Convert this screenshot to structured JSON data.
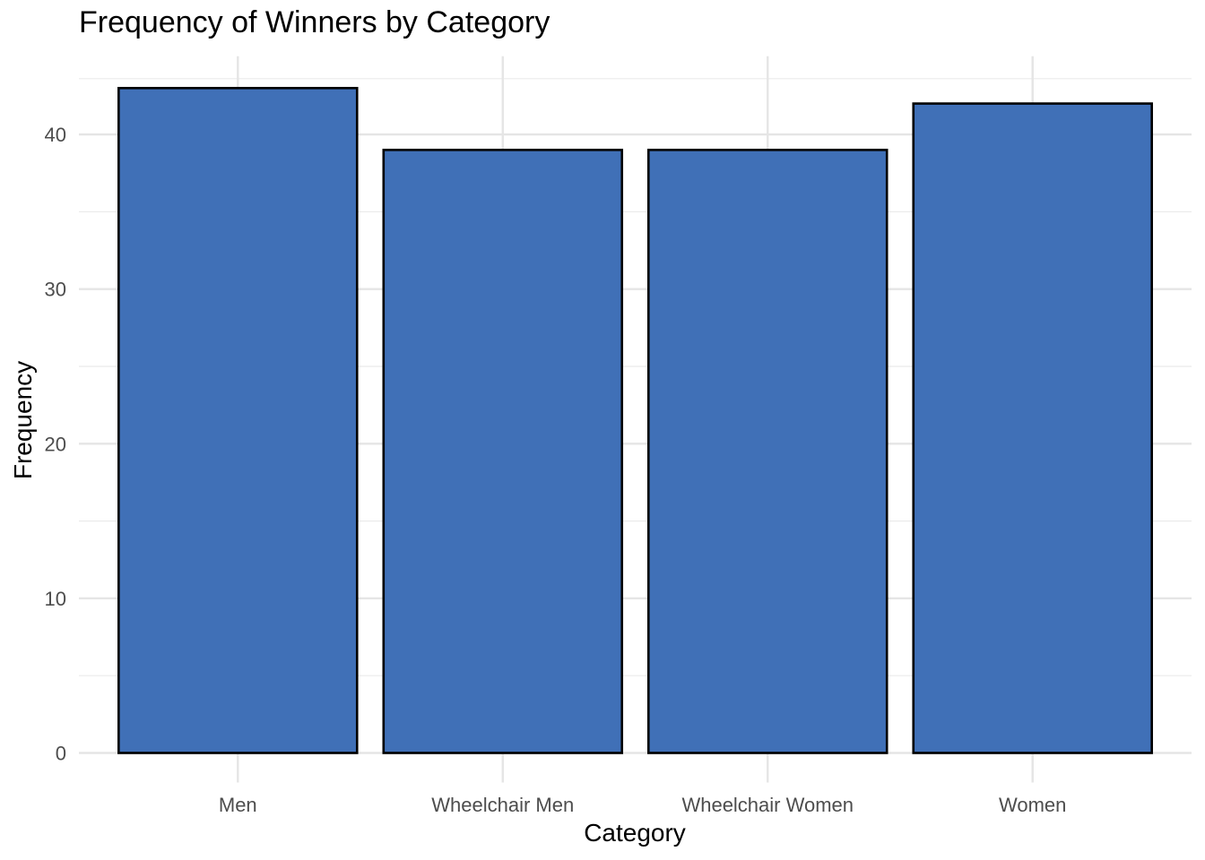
{
  "chart_data": {
    "type": "bar",
    "title": "Frequency of Winners by Category",
    "xlabel": "Category",
    "ylabel": "Frequency",
    "categories": [
      "Men",
      "Wheelchair Men",
      "Wheelchair Women",
      "Women"
    ],
    "values": [
      43,
      39,
      39,
      42
    ],
    "ylim": [
      0,
      45
    ],
    "yticks": [
      0,
      10,
      20,
      30,
      40
    ],
    "grid": true,
    "bar_color": "#4070B7",
    "bar_edge_color": "#000000"
  }
}
